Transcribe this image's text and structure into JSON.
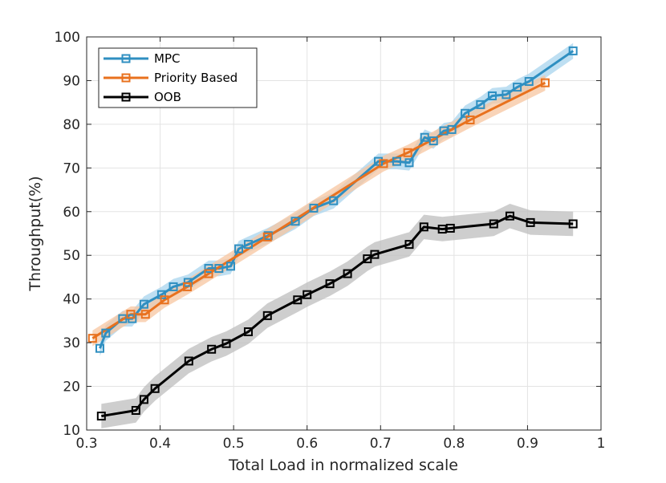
{
  "chart_data": {
    "type": "line",
    "title": "",
    "xlabel": "Total Load in normalized scale",
    "ylabel": "Throughput(%)",
    "xlim": [
      0.3,
      1.0
    ],
    "ylim": [
      10,
      100
    ],
    "xticks": [
      0.3,
      0.4,
      0.5,
      0.6,
      0.7,
      0.8,
      0.9,
      1.0
    ],
    "xtick_labels": [
      "0.3",
      "0.4",
      "0.5",
      "0.6",
      "0.7",
      "0.8",
      "0.9",
      "1"
    ],
    "yticks": [
      10,
      20,
      30,
      40,
      50,
      60,
      70,
      80,
      90,
      100
    ],
    "ytick_labels": [
      "10",
      "20",
      "30",
      "40",
      "50",
      "60",
      "70",
      "80",
      "90",
      "100"
    ],
    "grid": true,
    "legend_position": "top-left",
    "series": [
      {
        "name": "MPC",
        "color": "#2f8fc1",
        "band_color": "#a8d4ee",
        "band_half_width": 1.8,
        "marker": "square",
        "x": [
          0.318,
          0.326,
          0.349,
          0.362,
          0.378,
          0.402,
          0.418,
          0.438,
          0.466,
          0.48,
          0.496,
          0.507,
          0.52,
          0.547,
          0.584,
          0.609,
          0.636,
          0.697,
          0.722,
          0.739,
          0.76,
          0.772,
          0.786,
          0.797,
          0.815,
          0.836,
          0.852,
          0.871,
          0.886,
          0.902,
          0.962
        ],
        "y": [
          28.7,
          32.2,
          35.5,
          35.5,
          38.8,
          41.0,
          42.8,
          43.8,
          47.0,
          47.0,
          47.5,
          51.5,
          52.5,
          54.5,
          57.8,
          60.8,
          62.5,
          71.5,
          71.5,
          71.2,
          77.0,
          76.2,
          78.5,
          78.8,
          82.5,
          84.5,
          86.5,
          86.8,
          88.5,
          89.8,
          96.8
        ]
      },
      {
        "name": "Priority Based",
        "color": "#e8711e",
        "band_color": "#f7c6a0",
        "band_half_width": 1.8,
        "marker": "square",
        "x": [
          0.308,
          0.36,
          0.38,
          0.406,
          0.437,
          0.466,
          0.546,
          0.704,
          0.737,
          0.822,
          0.924
        ],
        "y": [
          31.0,
          36.5,
          36.5,
          39.8,
          42.8,
          45.8,
          54.2,
          71.0,
          73.5,
          81.0,
          89.5
        ]
      },
      {
        "name": "OOB",
        "color": "#000000",
        "band_color": "#bdbdbd",
        "band_half_width": 2.8,
        "marker": "square",
        "x": [
          0.32,
          0.367,
          0.378,
          0.393,
          0.439,
          0.47,
          0.49,
          0.52,
          0.546,
          0.587,
          0.6,
          0.631,
          0.655,
          0.682,
          0.692,
          0.739,
          0.759,
          0.784,
          0.795,
          0.854,
          0.876,
          0.904,
          0.962
        ],
        "y": [
          13.2,
          14.5,
          17.0,
          19.5,
          25.8,
          28.5,
          29.8,
          32.5,
          36.2,
          39.8,
          41.0,
          43.5,
          45.8,
          49.2,
          50.2,
          52.5,
          56.5,
          56.0,
          56.2,
          57.2,
          59.0,
          57.5,
          57.2
        ]
      }
    ]
  }
}
